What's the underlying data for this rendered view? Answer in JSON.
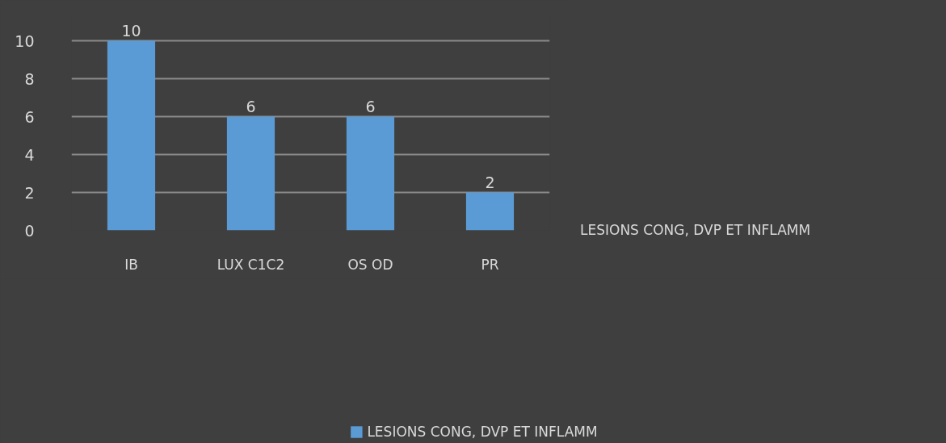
{
  "chart_data": {
    "type": "bar",
    "categories": [
      "IB",
      "LUX C1C2",
      "OS OD",
      "PR"
    ],
    "series": [
      {
        "name": "LESIONS CONG, DVP ET INFLAMM",
        "color": "#5b9bd5",
        "values": [
          10,
          6,
          6,
          2
        ]
      }
    ],
    "ylim": [
      0,
      10
    ],
    "yticks": [
      0,
      2,
      4,
      6,
      8,
      10
    ],
    "grid": "y",
    "legend": "bottom",
    "data_labels": true,
    "annotations": [
      "LESIONS CONG, DVP ET INFLAMM"
    ]
  }
}
